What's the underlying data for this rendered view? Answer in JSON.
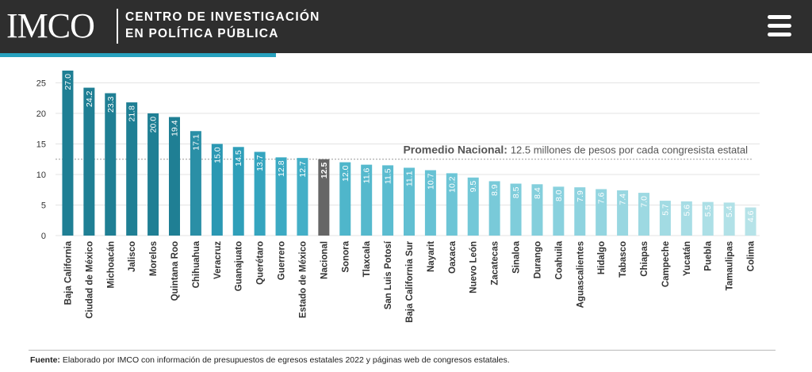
{
  "header": {
    "logo_text": "IMCO",
    "org_line1": "CENTRO DE INVESTIGACIÓN",
    "org_line2": "EN POLÍTICA PÚBLICA"
  },
  "colors": {
    "header_bg": "#2e2e2e",
    "accent": "#27a1be",
    "dark_teal": "#1f7f94",
    "mid_teal": "#2a98b3",
    "light_teal": "#76c5d9",
    "national": "#666666"
  },
  "chart_data": {
    "type": "bar",
    "categories": [
      "Baja California",
      "Ciudad de México",
      "Michoacán",
      "Jalisco",
      "Morelos",
      "Quintana Roo",
      "Chihuahua",
      "Veracruz",
      "Guanajuato",
      "Querétaro",
      "Guerrero",
      "Estado de México",
      "Nacional",
      "Sonora",
      "Tlaxcala",
      "San Luis Potosí",
      "Baja California Sur",
      "Nayarit",
      "Oaxaca",
      "Nuevo León",
      "Zacatecas",
      "Sinaloa",
      "Durango",
      "Coahuila",
      "Aguascalientes",
      "Hidalgo",
      "Tabasco",
      "Chiapas",
      "Campeche",
      "Yucatán",
      "Puebla",
      "Tamaulipas",
      "Colima"
    ],
    "values": [
      27.0,
      24.2,
      23.3,
      21.8,
      20.0,
      19.4,
      17.1,
      15.0,
      14.5,
      13.7,
      12.8,
      12.7,
      12.5,
      12.0,
      11.6,
      11.5,
      11.1,
      10.7,
      10.2,
      9.5,
      8.9,
      8.5,
      8.4,
      8.0,
      7.9,
      7.6,
      7.4,
      7.0,
      5.7,
      5.6,
      5.5,
      5.4,
      4.6
    ],
    "value_labels": [
      "27.0",
      "24.2",
      "23.3",
      "21.8",
      "20.0",
      "19.4",
      "17.1",
      "15.0",
      "14.5",
      "13.7",
      "12.8",
      "12.7",
      "12.5",
      "12.0",
      "11.6",
      "11.5",
      "11.1",
      "10.7",
      "10.2",
      "9.5",
      "8.9",
      "8.5",
      "8.4",
      "8.0",
      "7.9",
      "7.6",
      "7.4",
      "7.0",
      "5.7",
      "5.6",
      "5.5",
      "5.4",
      "4.6"
    ],
    "bar_colors": [
      "#1f7f94",
      "#1f7f94",
      "#1f7f94",
      "#1f7f94",
      "#1f7f94",
      "#1f7f94",
      "#2a8fa6",
      "#2a98b3",
      "#2f9fb9",
      "#35a5bf",
      "#3caac3",
      "#43afc7",
      "#666666",
      "#4fb6cb",
      "#55b9cd",
      "#5bbcd0",
      "#61bfd2",
      "#67c2d4",
      "#6dc5d6",
      "#73c8d8",
      "#79cad9",
      "#7fcddb",
      "#84cfdc",
      "#89d1de",
      "#8ed3df",
      "#93d5e0",
      "#98d7e1",
      "#9dd9e2",
      "#a2dbe3",
      "#a7dde5",
      "#acdfe6",
      "#b1e1e7",
      "#b6e3e8"
    ],
    "yticks": [
      0,
      5,
      10,
      15,
      20,
      25
    ],
    "ylim": [
      0,
      27.5
    ],
    "grid": true,
    "reference_line": {
      "value": 12.5,
      "label_bold": "Promedio Nacional:",
      "label_rest": "12.5 millones de pesos por cada congresista estatal"
    }
  },
  "source": {
    "label": "Fuente:",
    "text": "Elaborado por IMCO con información de presupuestos de egresos estatales 2022 y páginas web de congresos estatales."
  }
}
